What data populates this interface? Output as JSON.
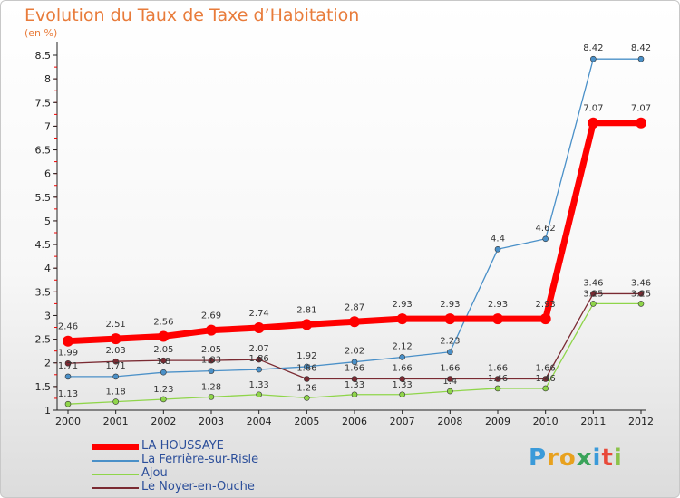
{
  "chart_data": {
    "type": "line",
    "title": "Evolution du Taux de Taxe d’Habitation",
    "unit": "(en %)",
    "x": [
      "2000",
      "2001",
      "2002",
      "2003",
      "2004",
      "2005",
      "2006",
      "2007",
      "2008",
      "2009",
      "2010",
      "2011",
      "2012"
    ],
    "y_ticks": [
      "1",
      "1.5",
      "2",
      "2.5",
      "3",
      "3.5",
      "4",
      "4.5",
      "5",
      "5.5",
      "6",
      "6.5",
      "7",
      "7.5",
      "8",
      "8.5"
    ],
    "ylim": [
      1,
      8.5
    ],
    "series": [
      {
        "name": "La Ferrière-sur-Risle",
        "color": "#4a90c8",
        "values": [
          1.71,
          1.71,
          1.8,
          1.83,
          1.86,
          1.92,
          2.02,
          2.12,
          2.23,
          4.4,
          4.62,
          8.42,
          8.42
        ],
        "labels": [
          "1.71",
          "1.71",
          "1.8",
          "1.83",
          "1.86",
          "1.92",
          "2.02",
          "2.12",
          "2.23",
          "4.4",
          "4.62",
          "8.42",
          "8.42"
        ]
      },
      {
        "name": "Ajou",
        "color": "#8fd54a",
        "values": [
          1.13,
          1.18,
          1.23,
          1.28,
          1.33,
          1.26,
          1.33,
          1.33,
          1.4,
          1.46,
          1.46,
          3.25,
          3.25
        ],
        "labels": [
          "1.13",
          "1.18",
          "1.23",
          "1.28",
          "1.33",
          "1.26",
          "1.33",
          "1.33",
          "1.4",
          "1.46",
          "1.46",
          "3.25",
          "3.25"
        ]
      },
      {
        "name": "Le Noyer-en-Ouche",
        "color": "#7a2a32",
        "values": [
          1.99,
          2.03,
          2.05,
          2.05,
          2.07,
          1.66,
          1.66,
          1.66,
          1.66,
          1.66,
          1.66,
          3.46,
          3.46
        ],
        "labels": [
          "1.99",
          "2.03",
          "2.05",
          "2.05",
          "2.07",
          "1.66",
          "1.66",
          "1.66",
          "1.66",
          "1.66",
          "1.66",
          "3.46",
          "3.46"
        ]
      },
      {
        "name": "LA HOUSSAYE",
        "color": "#ff0000",
        "values": [
          2.46,
          2.51,
          2.56,
          2.69,
          2.74,
          2.81,
          2.87,
          2.93,
          2.93,
          2.93,
          2.93,
          7.07,
          7.07
        ],
        "labels": [
          "2.46",
          "2.51",
          "2.56",
          "2.69",
          "2.74",
          "2.81",
          "2.87",
          "2.93",
          "2.93",
          "2.93",
          "2.93",
          "7.07",
          "7.07"
        ]
      }
    ],
    "legend": [
      "LA HOUSSAYE",
      "La Ferrière-sur-Risle",
      "Ajou",
      "Le Noyer-en-Ouche"
    ],
    "legend_position": "bottom-left"
  },
  "logo": {
    "text": "Proxiti",
    "letters": [
      "P",
      "r",
      "o",
      "x",
      "i",
      "t",
      "i"
    ]
  }
}
